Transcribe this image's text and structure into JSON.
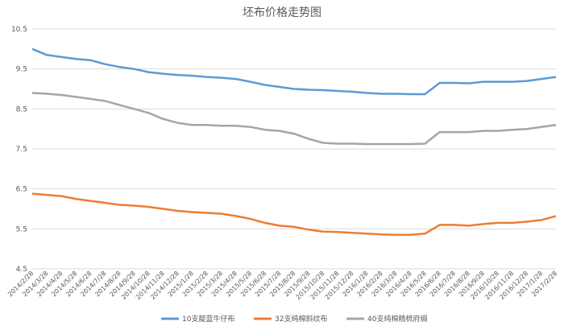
{
  "chart_data": {
    "type": "line",
    "title": "坯布价格走势图",
    "xlabel": "",
    "ylabel": "",
    "ylim": [
      4.5,
      10.5
    ],
    "yticks": [
      4.5,
      5.5,
      6.5,
      7.5,
      8.5,
      9.5,
      10.5
    ],
    "grid": true,
    "legend": "bottom",
    "categories": [
      "2014/2/28",
      "2014/3/28",
      "2014/4/28",
      "2014/5/28",
      "2014/6/28",
      "2014/7/28",
      "2014/8/28",
      "2014/9/28",
      "2014/10/28",
      "2014/11/28",
      "2014/12/28",
      "2015/1/28",
      "2015/2/28",
      "2015/3/28",
      "2015/4/28",
      "2015/5/28",
      "2015/6/28",
      "2015/7/28",
      "2015/8/28",
      "2015/9/28",
      "2015/10/28",
      "2015/11/28",
      "2015/12/28",
      "2016/1/28",
      "2016/2/28",
      "2016/3/28",
      "2016/4/28",
      "2016/5/28",
      "2016/6/28",
      "2016/7/28",
      "2016/8/28",
      "2016/9/28",
      "2016/10/28",
      "2016/11/28",
      "2016/12/28",
      "2017/1/28",
      "2017/2/28"
    ],
    "series": [
      {
        "name": "10支靛蓝牛仔布",
        "color": "#5b9bd5",
        "values": [
          10.0,
          9.85,
          9.8,
          9.75,
          9.72,
          9.62,
          9.55,
          9.5,
          9.42,
          9.38,
          9.35,
          9.33,
          9.3,
          9.28,
          9.25,
          9.18,
          9.1,
          9.05,
          9.0,
          8.98,
          8.97,
          8.95,
          8.93,
          8.9,
          8.88,
          8.88,
          8.87,
          8.87,
          9.15,
          9.15,
          9.14,
          9.18,
          9.18,
          9.18,
          9.2,
          9.25,
          9.3
        ]
      },
      {
        "name": "32支纯棉斜纹布",
        "color": "#ed7d31",
        "values": [
          6.38,
          6.35,
          6.32,
          6.25,
          6.2,
          6.15,
          6.1,
          6.08,
          6.05,
          6.0,
          5.95,
          5.92,
          5.9,
          5.88,
          5.82,
          5.75,
          5.65,
          5.58,
          5.55,
          5.48,
          5.43,
          5.42,
          5.4,
          5.38,
          5.36,
          5.35,
          5.35,
          5.38,
          5.6,
          5.6,
          5.58,
          5.62,
          5.65,
          5.65,
          5.68,
          5.72,
          5.82
        ]
      },
      {
        "name": "40支纯棉精梳府绸",
        "color": "#a5a5a5",
        "values": [
          8.9,
          8.88,
          8.85,
          8.8,
          8.75,
          8.7,
          8.6,
          8.5,
          8.4,
          8.25,
          8.15,
          8.1,
          8.1,
          8.08,
          8.08,
          8.05,
          7.98,
          7.95,
          7.88,
          7.75,
          7.65,
          7.63,
          7.63,
          7.62,
          7.62,
          7.62,
          7.62,
          7.63,
          7.92,
          7.92,
          7.92,
          7.95,
          7.95,
          7.98,
          8.0,
          8.05,
          8.1
        ]
      }
    ]
  }
}
